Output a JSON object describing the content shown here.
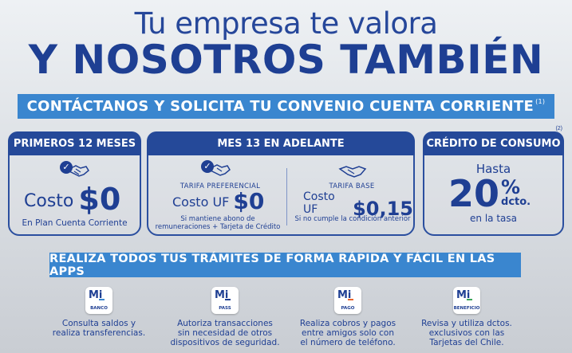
{
  "header": {
    "line1": "Tu empresa te valora",
    "line2": "Y NOSOTROS TAMBIÉN"
  },
  "cta": {
    "text": "CONTÁCTANOS Y SOLICITA TU CONVENIO CUENTA CORRIENTE",
    "footnote": "(1)"
  },
  "cards": {
    "first": {
      "title": "PRIMEROS 12 MESES",
      "costo_word": "Costo",
      "costo_value": "$0",
      "note": "En Plan Cuenta Corriente"
    },
    "second": {
      "title": "MES 13 EN ADELANTE",
      "left": {
        "tarifa": "TARIFA PREFERENCIAL",
        "costo_word": "Costo UF",
        "costo_value": "$0",
        "note": "Si mantiene abono de\nremuneraciones + Tarjeta de Crédito"
      },
      "right": {
        "tarifa": "TARIFA BASE",
        "costo_word": "Costo UF",
        "costo_value": "$0,15",
        "note": "Si no cumple la condición anterior"
      }
    },
    "third": {
      "title": "CRÉDITO DE CONSUMO",
      "footnote": "(2)",
      "hasta": "Hasta",
      "percent": "20",
      "percent_sign": "%",
      "dcto": "dcto.",
      "tasa": "en la tasa"
    }
  },
  "apps_banner": "REALIZA TODOS TUS TRÁMITES DE FORMA RÁPIDA Y FÁCIL EN LAS APPS",
  "apps": [
    {
      "mi": "Mi",
      "name": "BANCO",
      "accent": "#3a86cf",
      "desc": "Consulta saldos y\nrealiza transferencias."
    },
    {
      "mi": "Mi",
      "name": "PASS",
      "accent": "#1f3f93",
      "desc": "Autoriza transacciones\nsin necesidad de otros\ndispositivos de seguridad."
    },
    {
      "mi": "Mi",
      "name": "PAGO",
      "accent": "#e8632b",
      "desc": "Realiza cobros y pagos\nentre amigos solo con\nel número de teléfono."
    },
    {
      "mi": "Mi",
      "name": "BENEFICIO",
      "accent": "#3aa55a",
      "desc": "Revisa y utiliza dctos.\nexclusivos con las\nTarjetas del Chile."
    }
  ],
  "colors": {
    "primary": "#1f3f93",
    "accent_blue": "#3a86cf"
  }
}
